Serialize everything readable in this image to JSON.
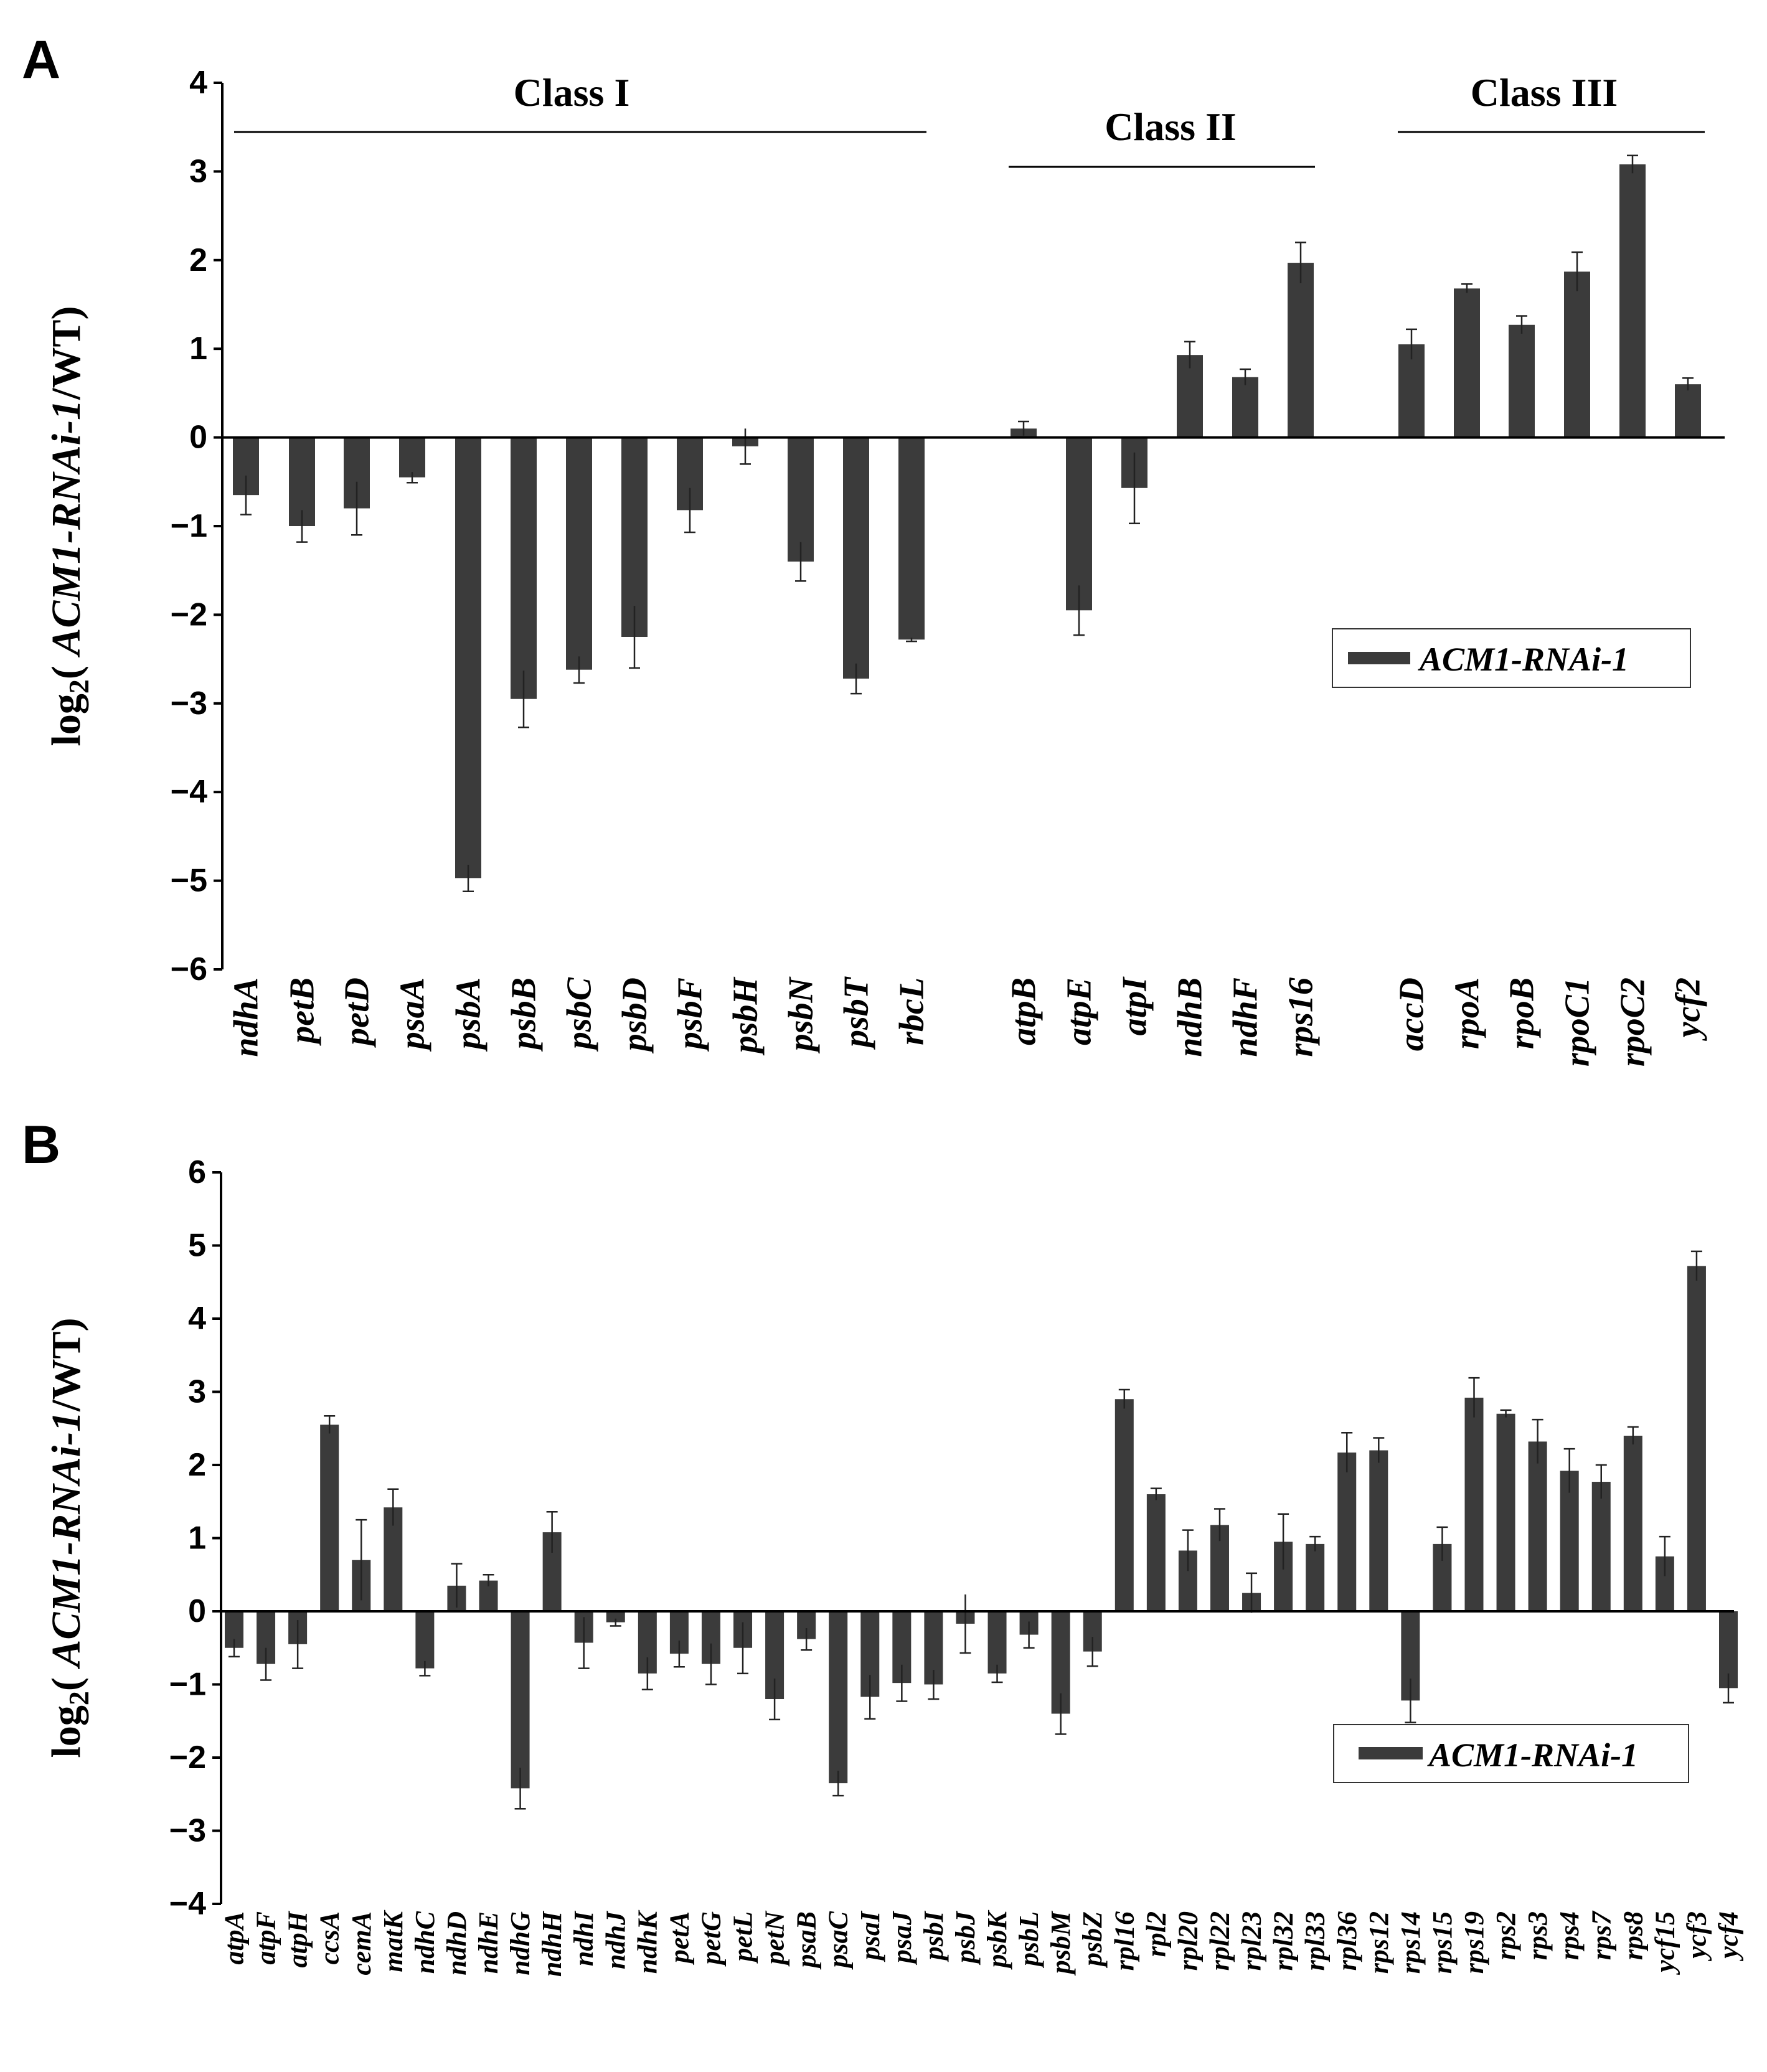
{
  "chart_data": [
    {
      "panel_label": "A",
      "type": "bar",
      "ylabel_prefix": "log",
      "ylabel_sub": "2",
      "ylabel_open": "( ",
      "ylabel_italic": "ACM1-RNAi-1",
      "ylabel_close": "/WT)",
      "ylim": [
        -6,
        4
      ],
      "yticks": [
        "−6",
        "−5",
        "−4",
        "−3",
        "−2",
        "−1",
        "0",
        "1",
        "2",
        "3",
        "4"
      ],
      "legend": "ACM1-RNAi-1",
      "groups": [
        "Class I",
        "Class II",
        "Class III"
      ],
      "bars": [
        {
          "label": "ndhA",
          "value": -0.65,
          "err": 0.22,
          "group": 0
        },
        {
          "label": "petB",
          "value": -1.0,
          "err": 0.18,
          "group": 0
        },
        {
          "label": "petD",
          "value": -0.8,
          "err": 0.3,
          "group": 0
        },
        {
          "label": "psaA",
          "value": -0.45,
          "err": 0.06,
          "group": 0
        },
        {
          "label": "psbA",
          "value": -4.97,
          "err": 0.15,
          "group": 0
        },
        {
          "label": "psbB",
          "value": -2.95,
          "err": 0.32,
          "group": 0
        },
        {
          "label": "psbC",
          "value": -2.62,
          "err": 0.15,
          "group": 0
        },
        {
          "label": "psbD",
          "value": -2.25,
          "err": 0.35,
          "group": 0
        },
        {
          "label": "psbF",
          "value": -0.82,
          "err": 0.25,
          "group": 0
        },
        {
          "label": "psbH",
          "value": -0.1,
          "err": 0.2,
          "group": 0
        },
        {
          "label": "psbN",
          "value": -1.4,
          "err": 0.22,
          "group": 0
        },
        {
          "label": "psbT",
          "value": -2.72,
          "err": 0.17,
          "group": 0
        },
        {
          "label": "rbcL",
          "value": -2.28,
          "err": 0.02,
          "group": 0
        },
        {
          "label": "atpB",
          "value": 0.1,
          "err": 0.08,
          "group": 1
        },
        {
          "label": "atpE",
          "value": -1.95,
          "err": 0.28,
          "group": 1
        },
        {
          "label": "atpI",
          "value": -0.57,
          "err": 0.4,
          "group": 1
        },
        {
          "label": "ndhB",
          "value": 0.93,
          "err": 0.15,
          "group": 1
        },
        {
          "label": "ndhF",
          "value": 0.68,
          "err": 0.09,
          "group": 1
        },
        {
          "label": "rps16",
          "value": 1.97,
          "err": 0.23,
          "group": 1
        },
        {
          "label": "accD",
          "value": 1.05,
          "err": 0.17,
          "group": 2
        },
        {
          "label": "rpoA",
          "value": 1.68,
          "err": 0.05,
          "group": 2
        },
        {
          "label": "rpoB",
          "value": 1.27,
          "err": 0.1,
          "group": 2
        },
        {
          "label": "rpoC1",
          "value": 1.87,
          "err": 0.22,
          "group": 2
        },
        {
          "label": "rpoC2",
          "value": 3.08,
          "err": 0.1,
          "group": 2
        },
        {
          "label": "ycf2",
          "value": 0.6,
          "err": 0.07,
          "group": 2
        }
      ]
    },
    {
      "panel_label": "B",
      "type": "bar",
      "ylabel_prefix": "log",
      "ylabel_sub": "2",
      "ylabel_open": "( ",
      "ylabel_italic": "ACM1-RNAi-1",
      "ylabel_close": "/WT)",
      "ylim": [
        -4,
        6
      ],
      "yticks": [
        "−4",
        "−3",
        "−2",
        "−1",
        "0",
        "1",
        "2",
        "3",
        "4",
        "5",
        "6"
      ],
      "legend": "ACM1-RNAi-1",
      "bars": [
        {
          "label": "atpA",
          "value": -0.5,
          "err": 0.12
        },
        {
          "label": "atpF",
          "value": -0.72,
          "err": 0.22
        },
        {
          "label": "atpH",
          "value": -0.45,
          "err": 0.33
        },
        {
          "label": "ccsA",
          "value": 2.55,
          "err": 0.12
        },
        {
          "label": "cemA",
          "value": 0.7,
          "err": 0.55
        },
        {
          "label": "matK",
          "value": 1.42,
          "err": 0.25
        },
        {
          "label": "ndhC",
          "value": -0.78,
          "err": 0.1
        },
        {
          "label": "ndhD",
          "value": 0.35,
          "err": 0.3
        },
        {
          "label": "ndhE",
          "value": 0.42,
          "err": 0.08
        },
        {
          "label": "ndhG",
          "value": -2.42,
          "err": 0.28
        },
        {
          "label": "ndhH",
          "value": 1.08,
          "err": 0.28
        },
        {
          "label": "ndhI",
          "value": -0.43,
          "err": 0.35
        },
        {
          "label": "ndhJ",
          "value": -0.15,
          "err": 0.05
        },
        {
          "label": "ndhK",
          "value": -0.85,
          "err": 0.22
        },
        {
          "label": "petA",
          "value": -0.58,
          "err": 0.18
        },
        {
          "label": "petG",
          "value": -0.72,
          "err": 0.28
        },
        {
          "label": "petL",
          "value": -0.5,
          "err": 0.35
        },
        {
          "label": "petN",
          "value": -1.2,
          "err": 0.28
        },
        {
          "label": "psaB",
          "value": -0.38,
          "err": 0.15
        },
        {
          "label": "psaC",
          "value": -2.35,
          "err": 0.17
        },
        {
          "label": "psaI",
          "value": -1.17,
          "err": 0.3
        },
        {
          "label": "psaJ",
          "value": -0.98,
          "err": 0.25
        },
        {
          "label": "psbI",
          "value": -1.0,
          "err": 0.2
        },
        {
          "label": "psbJ",
          "value": -0.17,
          "err": 0.4
        },
        {
          "label": "psbK",
          "value": -0.85,
          "err": 0.12
        },
        {
          "label": "psbL",
          "value": -0.32,
          "err": 0.18
        },
        {
          "label": "psbM",
          "value": -1.4,
          "err": 0.28
        },
        {
          "label": "psbZ",
          "value": -0.55,
          "err": 0.2
        },
        {
          "label": "rpl16",
          "value": 2.9,
          "err": 0.13
        },
        {
          "label": "rpl2",
          "value": 1.6,
          "err": 0.08
        },
        {
          "label": "rpl20",
          "value": 0.83,
          "err": 0.28
        },
        {
          "label": "rpl22",
          "value": 1.18,
          "err": 0.22
        },
        {
          "label": "rpl23",
          "value": 0.25,
          "err": 0.27
        },
        {
          "label": "rpl32",
          "value": 0.95,
          "err": 0.38
        },
        {
          "label": "rpl33",
          "value": 0.92,
          "err": 0.1
        },
        {
          "label": "rpl36",
          "value": 2.17,
          "err": 0.27
        },
        {
          "label": "rps12",
          "value": 2.2,
          "err": 0.17
        },
        {
          "label": "rps14",
          "value": -1.22,
          "err": 0.3
        },
        {
          "label": "rps15",
          "value": 0.92,
          "err": 0.23
        },
        {
          "label": "rps19",
          "value": 2.92,
          "err": 0.27
        },
        {
          "label": "rps2",
          "value": 2.7,
          "err": 0.05
        },
        {
          "label": "rps3",
          "value": 2.32,
          "err": 0.3
        },
        {
          "label": "rps4",
          "value": 1.92,
          "err": 0.3
        },
        {
          "label": "rps7",
          "value": 1.77,
          "err": 0.23
        },
        {
          "label": "rps8",
          "value": 2.4,
          "err": 0.12
        },
        {
          "label": "ycf15",
          "value": 0.75,
          "err": 0.27
        },
        {
          "label": "ycf3",
          "value": 4.72,
          "err": 0.2
        },
        {
          "label": "ycf4",
          "value": -1.05,
          "err": 0.2
        }
      ]
    }
  ],
  "colors": {
    "bar": "#3b3b3b",
    "axis": "#000000",
    "text": "#000000"
  }
}
